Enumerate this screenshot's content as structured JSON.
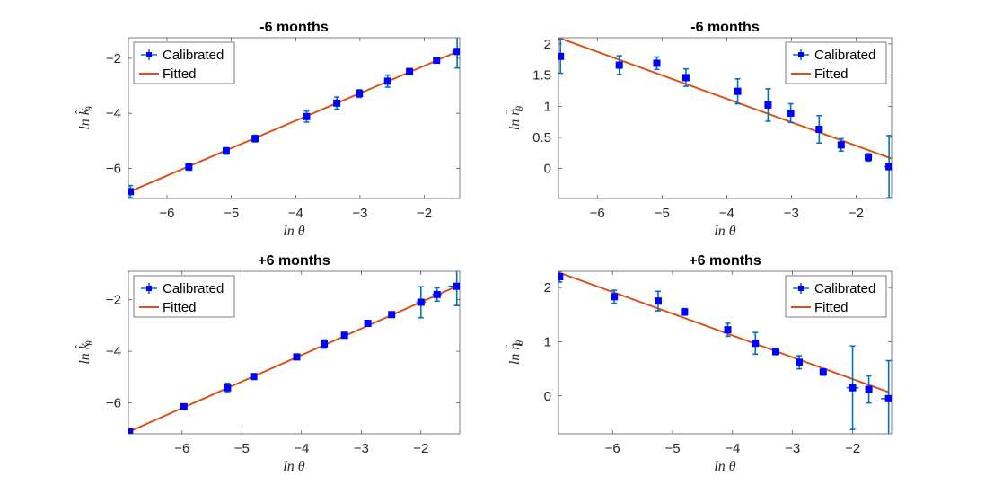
{
  "figure": {
    "label": "Calibrated vs fitted log-parameters"
  },
  "colors": {
    "calibrated": "#0000ff",
    "errorbar": "#0072bd",
    "fitted": "#d95319",
    "axis": "#262626"
  },
  "chart_data": [
    {
      "type": "scatter",
      "title": "-6 months",
      "xlabel": "ln θ",
      "ylabel": "ln k̂θ",
      "ylabel_parts": {
        "ln": "ln",
        "sym": "k",
        "hat": "ˆ",
        "sub": "θ"
      },
      "xlim": [
        -6.6,
        -1.45
      ],
      "ylim": [
        -7.1,
        -1.25
      ],
      "xticks": [
        -6,
        -5,
        -4,
        -3,
        -2
      ],
      "yticks": [
        -6,
        -4,
        -2
      ],
      "legend": {
        "position": "top-left",
        "entries": [
          "Calibrated",
          "Fitted"
        ]
      },
      "series": [
        {
          "name": "Calibrated",
          "x": [
            -6.57,
            -5.66,
            -5.08,
            -4.63,
            -3.83,
            -3.36,
            -3.01,
            -2.57,
            -2.23,
            -1.81,
            -1.49
          ],
          "y": [
            -6.85,
            -5.95,
            -5.37,
            -4.92,
            -4.12,
            -3.63,
            -3.28,
            -2.83,
            -2.48,
            -2.07,
            -1.75
          ],
          "yerr": [
            0.22,
            0.12,
            0.12,
            0.12,
            0.2,
            0.22,
            0.14,
            0.22,
            0.1,
            0.1,
            0.6
          ],
          "xerr": [
            0.05,
            0.05,
            0.05,
            0.05,
            0.05,
            0.05,
            0.05,
            0.05,
            0.05,
            0.05,
            0.08
          ]
        },
        {
          "name": "Fitted",
          "x": [
            -6.6,
            -1.45
          ],
          "y": [
            -6.87,
            -1.72
          ]
        }
      ]
    },
    {
      "type": "scatter",
      "title": "-6 months",
      "xlabel": "ln θ",
      "ylabel": "ln η̂θ",
      "ylabel_parts": {
        "ln": "ln",
        "sym": "η",
        "hat": "ˆ",
        "sub": "θ"
      },
      "xlim": [
        -6.6,
        -1.45
      ],
      "ylim": [
        -0.48,
        2.1
      ],
      "xticks": [
        -6,
        -5,
        -4,
        -3,
        -2
      ],
      "yticks": [
        0,
        0.5,
        1,
        1.5,
        2
      ],
      "legend": {
        "position": "top-right",
        "entries": [
          "Calibrated",
          "Fitted"
        ]
      },
      "series": [
        {
          "name": "Calibrated",
          "x": [
            -6.57,
            -5.66,
            -5.08,
            -4.63,
            -3.83,
            -3.36,
            -3.01,
            -2.57,
            -2.23,
            -1.81,
            -1.49
          ],
          "y": [
            1.8,
            1.66,
            1.69,
            1.46,
            1.24,
            1.02,
            0.89,
            0.63,
            0.38,
            0.18,
            0.03
          ],
          "yerr": [
            0.27,
            0.15,
            0.1,
            0.14,
            0.2,
            0.26,
            0.15,
            0.22,
            0.1,
            0.06,
            0.5
          ],
          "xerr": [
            0.05,
            0.05,
            0.05,
            0.05,
            0.05,
            0.05,
            0.05,
            0.05,
            0.05,
            0.05,
            0.08
          ]
        },
        {
          "name": "Fitted",
          "x": [
            -6.6,
            -1.45
          ],
          "y": [
            2.1,
            0.16
          ]
        }
      ]
    },
    {
      "type": "scatter",
      "title": "+6 months",
      "xlabel": "ln θ",
      "ylabel": "ln k̂θ",
      "ylabel_parts": {
        "ln": "ln",
        "sym": "k",
        "hat": "ˆ",
        "sub": "θ"
      },
      "xlim": [
        -6.9,
        -1.35
      ],
      "ylim": [
        -7.2,
        -0.9
      ],
      "xticks": [
        -6,
        -5,
        -4,
        -3,
        -2
      ],
      "yticks": [
        -6,
        -4,
        -2
      ],
      "legend": {
        "position": "top-left",
        "entries": [
          "Calibrated",
          "Fitted"
        ]
      },
      "series": [
        {
          "name": "Calibrated",
          "x": [
            -6.88,
            -5.97,
            -5.24,
            -4.8,
            -4.08,
            -3.62,
            -3.28,
            -2.89,
            -2.49,
            -2.0,
            -1.73,
            -1.4
          ],
          "y": [
            -7.13,
            -6.15,
            -5.42,
            -4.98,
            -4.22,
            -3.72,
            -3.38,
            -2.92,
            -2.58,
            -2.1,
            -1.8,
            -1.48
          ],
          "yerr": [
            0.1,
            0.1,
            0.18,
            0.08,
            0.08,
            0.16,
            0.08,
            0.08,
            0.08,
            0.6,
            0.26,
            0.75
          ],
          "xerr": [
            0.05,
            0.05,
            0.05,
            0.05,
            0.05,
            0.05,
            0.05,
            0.05,
            0.05,
            0.08,
            0.08,
            0.14
          ]
        },
        {
          "name": "Fitted",
          "x": [
            -6.9,
            -1.4
          ],
          "y": [
            -7.13,
            -1.48
          ]
        }
      ]
    },
    {
      "type": "scatter",
      "title": "+6 months",
      "xlabel": "ln θ",
      "ylabel": "ln η̂θ",
      "ylabel_parts": {
        "ln": "ln",
        "sym": "η",
        "hat": "ˆ",
        "sub": "θ"
      },
      "xlim": [
        -6.9,
        -1.35
      ],
      "ylim": [
        -0.7,
        2.3
      ],
      "xticks": [
        -6,
        -5,
        -4,
        -3,
        -2
      ],
      "yticks": [
        0,
        1,
        2
      ],
      "legend": {
        "position": "top-right",
        "entries": [
          "Calibrated",
          "Fitted"
        ]
      },
      "series": [
        {
          "name": "Calibrated",
          "x": [
            -6.88,
            -5.97,
            -5.24,
            -4.8,
            -4.08,
            -3.62,
            -3.28,
            -2.89,
            -2.49,
            -2.0,
            -1.73,
            -1.4
          ],
          "y": [
            2.2,
            1.83,
            1.75,
            1.55,
            1.22,
            0.97,
            0.82,
            0.62,
            0.44,
            0.15,
            0.12,
            -0.05
          ],
          "yerr": [
            0.1,
            0.12,
            0.18,
            0.06,
            0.12,
            0.2,
            0.06,
            0.12,
            0.06,
            0.77,
            0.25,
            0.7
          ],
          "xerr": [
            0.05,
            0.05,
            0.05,
            0.05,
            0.05,
            0.05,
            0.05,
            0.05,
            0.05,
            0.1,
            0.06,
            0.13
          ]
        },
        {
          "name": "Fitted",
          "x": [
            -6.9,
            -1.4
          ],
          "y": [
            2.28,
            0.07
          ]
        }
      ]
    }
  ]
}
